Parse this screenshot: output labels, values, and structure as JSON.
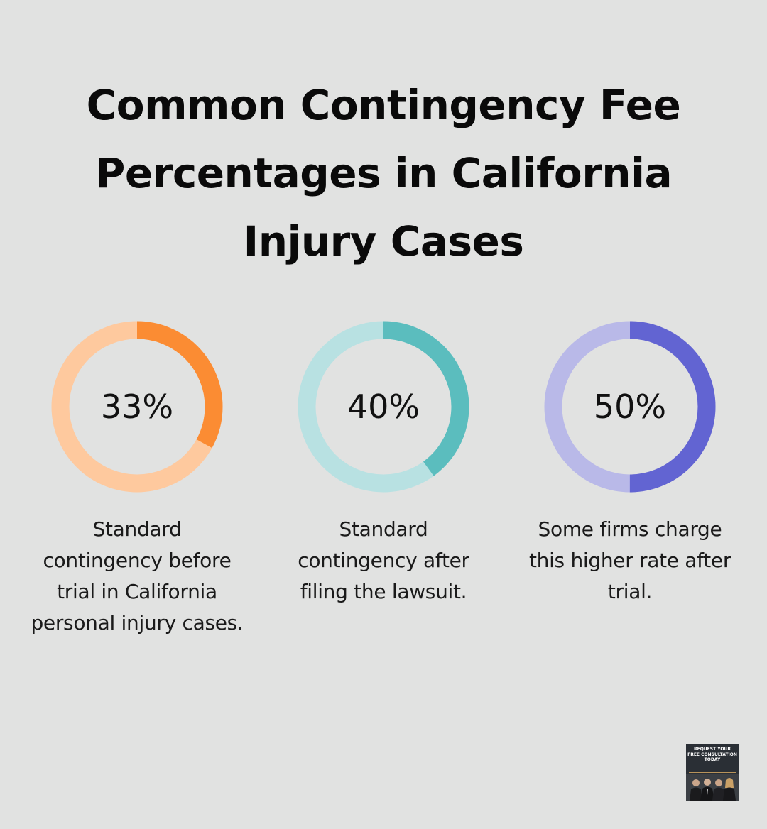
{
  "title": "Common Contingency Fee Percentages in California Injury Cases",
  "chart_data": {
    "type": "donut",
    "title": "Common Contingency Fee Percentages in California Injury Cases",
    "items": [
      {
        "value": 33,
        "label": "33%",
        "description": "Standard contingency before trial in California personal injury cases.",
        "color": "#fb8c33",
        "track_color": "#fec99e"
      },
      {
        "value": 40,
        "label": "40%",
        "description": "Standard contingency after filing the lawsuit.",
        "color": "#5bbdbe",
        "track_color": "#b8e1e2"
      },
      {
        "value": 50,
        "label": "50%",
        "description": "Some firms charge this higher rate after trial.",
        "color": "#6264d2",
        "track_color": "#b9b9e8"
      }
    ]
  },
  "cta": {
    "text": "REQUEST YOUR FREE CONSULTATION TODAY",
    "icon": "attorneys-photo"
  }
}
